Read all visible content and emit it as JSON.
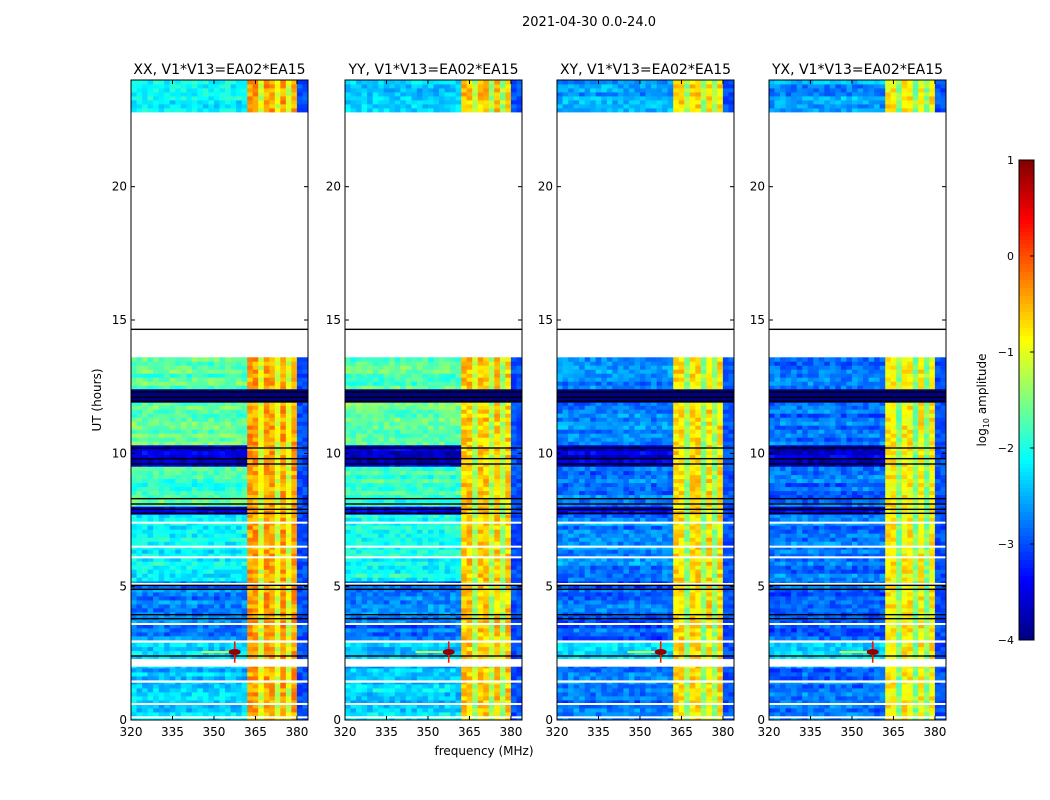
{
  "chart_data": {
    "type": "heatmap",
    "suptitle": "2021-04-30 0.0-24.0",
    "xlabel": "frequency (MHz)",
    "ylabel": "UT (hours)",
    "xlim": [
      320,
      384
    ],
    "ylim": [
      0,
      24
    ],
    "xticks": [
      320,
      335,
      350,
      365,
      380
    ],
    "yticks": [
      0,
      5,
      10,
      15,
      20
    ],
    "panels": [
      {
        "title": "XX, V1*V13=EA02*EA15",
        "rfi_level": -0.4
      },
      {
        "title": "YY, V1*V13=EA02*EA15",
        "rfi_level": -0.6
      },
      {
        "title": "XY, V1*V13=EA02*EA15",
        "rfi_level": -0.7
      },
      {
        "title": "YX, V1*V13=EA02*EA15",
        "rfi_level": -0.8
      }
    ],
    "time_segments": [
      {
        "t": [
          22.8,
          24.0
        ],
        "levels": [
          -2.2,
          -2.3,
          -2.6,
          -2.6
        ]
      },
      {
        "t": [
          12.4,
          13.6
        ],
        "levels": [
          -1.7,
          -1.7,
          -2.7,
          -2.8
        ]
      },
      {
        "t": [
          11.9,
          12.4
        ],
        "levels": [
          -4.2,
          -4.2,
          -4.2,
          -4.2
        ]
      },
      {
        "t": [
          10.3,
          11.9
        ],
        "levels": [
          -1.6,
          -1.6,
          -2.7,
          -2.8
        ]
      },
      {
        "t": [
          9.5,
          10.3
        ],
        "levels": [
          -3.6,
          -3.6,
          -3.6,
          -3.6
        ]
      },
      {
        "t": [
          8.0,
          9.5
        ],
        "levels": [
          -1.8,
          -1.8,
          -2.8,
          -2.8
        ]
      },
      {
        "t": [
          7.7,
          8.0
        ],
        "levels": [
          -3.5,
          -3.5,
          -3.5,
          -3.5
        ]
      },
      {
        "t": [
          5.2,
          7.7
        ],
        "levels": [
          -2.1,
          -2.0,
          -2.7,
          -2.8
        ]
      },
      {
        "t": [
          3.0,
          5.2
        ],
        "levels": [
          -2.8,
          -2.8,
          -2.9,
          -2.9
        ]
      },
      {
        "t": [
          2.3,
          2.9
        ],
        "levels": [
          -2.4,
          -2.4,
          -2.4,
          -2.4
        ]
      },
      {
        "t": [
          1.5,
          2.0
        ],
        "levels": [
          -2.5,
          -2.5,
          -2.8,
          -2.8
        ]
      },
      {
        "t": [
          0.0,
          1.4
        ],
        "levels": [
          -2.3,
          -2.3,
          -2.8,
          -2.8
        ]
      }
    ],
    "rfi_band_mhz": [
      362.5,
      380
    ],
    "rfi_subband_gaps_mhz": [
      367.5,
      372.8,
      377.5
    ],
    "high_edge_level": -3.0,
    "flagged_white_rows_hours": [
      0.1,
      0.6,
      3.6,
      5.1,
      6.1,
      6.5,
      7.4
    ],
    "flagged_black_rows_hours": [
      2.4,
      3.8,
      3.95,
      4.9,
      5.05,
      7.75,
      7.9,
      8.1,
      8.3,
      9.6,
      9.8,
      10.2,
      11.95,
      12.1,
      12.3,
      14.65
    ],
    "rfi_spike": {
      "freq_mhz": 357.5,
      "time_hours": 2.55,
      "level": 0.9
    },
    "colorbar": {
      "label": "log10 amplitude",
      "label_main": "log",
      "label_sub": "10",
      "label_rest": " amplitude",
      "range": [
        -4,
        1
      ],
      "ticks": [
        "1",
        "0",
        "−1",
        "−2",
        "−3",
        "−4"
      ],
      "colormap": "jet"
    }
  }
}
